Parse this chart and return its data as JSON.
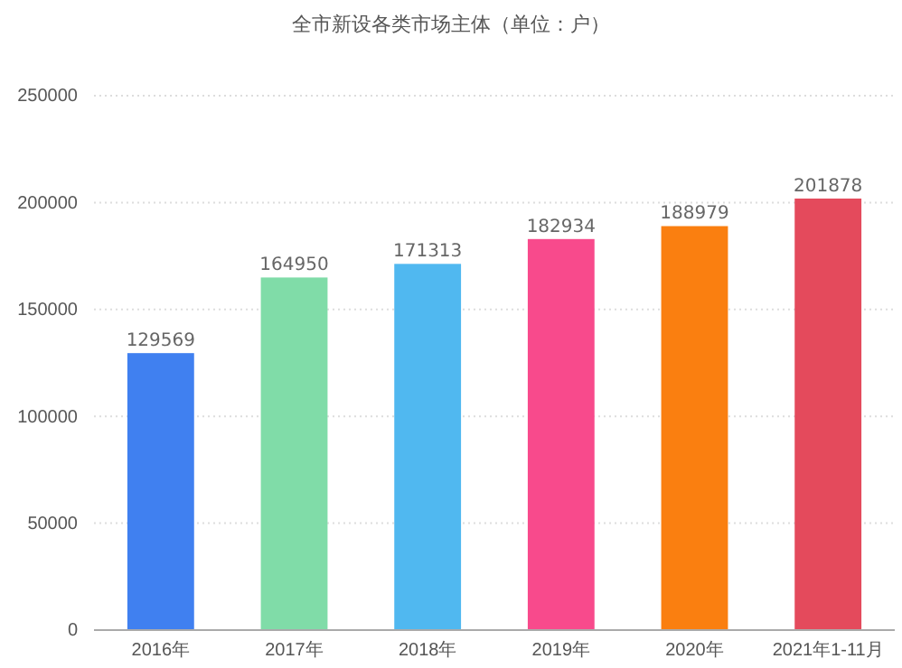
{
  "chart_data": {
    "type": "bar",
    "title": "全市新设各类市场主体（单位：户）",
    "categories": [
      "2016年",
      "2017年",
      "2018年",
      "2019年",
      "2020年",
      "2021年1-11月"
    ],
    "values": [
      129569,
      164950,
      171313,
      182934,
      188979,
      201878
    ],
    "colors": [
      "#4080f0",
      "#80dca8",
      "#50b8f0",
      "#f84a8c",
      "#fa7f10",
      "#e44a5c"
    ],
    "ylim": [
      0,
      250000
    ],
    "yticks": [
      0,
      50000,
      100000,
      150000,
      200000,
      250000
    ],
    "grid": "y",
    "data_labels": true
  }
}
